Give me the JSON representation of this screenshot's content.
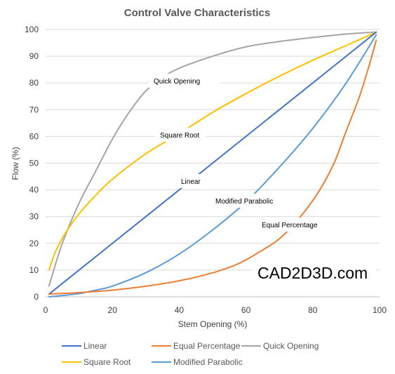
{
  "chart_data": {
    "type": "line",
    "title": "Control Valve Characteristics",
    "xlabel": "Stem Opening  (%)",
    "ylabel": "Flow  (%)",
    "xlim": [
      0,
      100
    ],
    "ylim": [
      0,
      100
    ],
    "xticks": [
      0,
      20,
      40,
      60,
      80,
      100
    ],
    "yticks": [
      0,
      10,
      20,
      30,
      40,
      50,
      60,
      70,
      80,
      90,
      100
    ],
    "grid": "horizontal",
    "legend_position": "bottom",
    "series": [
      {
        "name": "Linear",
        "color": "#4472C4",
        "points": [
          [
            1,
            1
          ],
          [
            99,
            99
          ]
        ]
      },
      {
        "name": "Equal Percentage",
        "color": "#ED7D31",
        "points": [
          [
            1,
            1
          ],
          [
            20,
            2.5
          ],
          [
            40,
            6
          ],
          [
            55,
            11
          ],
          [
            65,
            17.5
          ],
          [
            72,
            24
          ],
          [
            80,
            36
          ],
          [
            86,
            49
          ],
          [
            90,
            62
          ],
          [
            94,
            75
          ],
          [
            97,
            87
          ],
          [
            99,
            96
          ]
        ]
      },
      {
        "name": "Quick Opening",
        "color": "#A5A5A5",
        "points": [
          [
            1,
            4
          ],
          [
            5,
            20
          ],
          [
            10,
            35
          ],
          [
            15,
            47
          ],
          [
            20,
            59
          ],
          [
            25,
            69
          ],
          [
            30,
            77
          ],
          [
            35,
            82
          ],
          [
            40,
            85.5
          ],
          [
            50,
            90
          ],
          [
            60,
            93.5
          ],
          [
            70,
            95.5
          ],
          [
            80,
            97
          ],
          [
            90,
            98.3
          ],
          [
            99,
            99
          ]
        ]
      },
      {
        "name": "Square Root",
        "color": "#FFC000",
        "points": [
          [
            1,
            10
          ],
          [
            3,
            17
          ],
          [
            6,
            24
          ],
          [
            10,
            31
          ],
          [
            15,
            38
          ],
          [
            20,
            44
          ],
          [
            30,
            53.5
          ],
          [
            40,
            61
          ],
          [
            50,
            69
          ],
          [
            60,
            76
          ],
          [
            70,
            82.5
          ],
          [
            80,
            88.5
          ],
          [
            90,
            94
          ],
          [
            99,
            99
          ]
        ]
      },
      {
        "name": "Modified Parabolic",
        "color": "#5B9BD5",
        "points": [
          [
            1,
            0
          ],
          [
            5,
            0.5
          ],
          [
            10,
            1.2
          ],
          [
            15,
            2.5
          ],
          [
            20,
            4
          ],
          [
            30,
            9
          ],
          [
            40,
            16
          ],
          [
            50,
            25
          ],
          [
            60,
            35.5
          ],
          [
            70,
            48.5
          ],
          [
            80,
            63
          ],
          [
            90,
            80
          ],
          [
            99,
            98
          ]
        ]
      }
    ],
    "annotations": [
      "Quick Opening",
      "Square Root",
      "Linear",
      "Modified Parabolic",
      "Equal Percentage"
    ]
  },
  "watermark": "CAD2D3D.com"
}
